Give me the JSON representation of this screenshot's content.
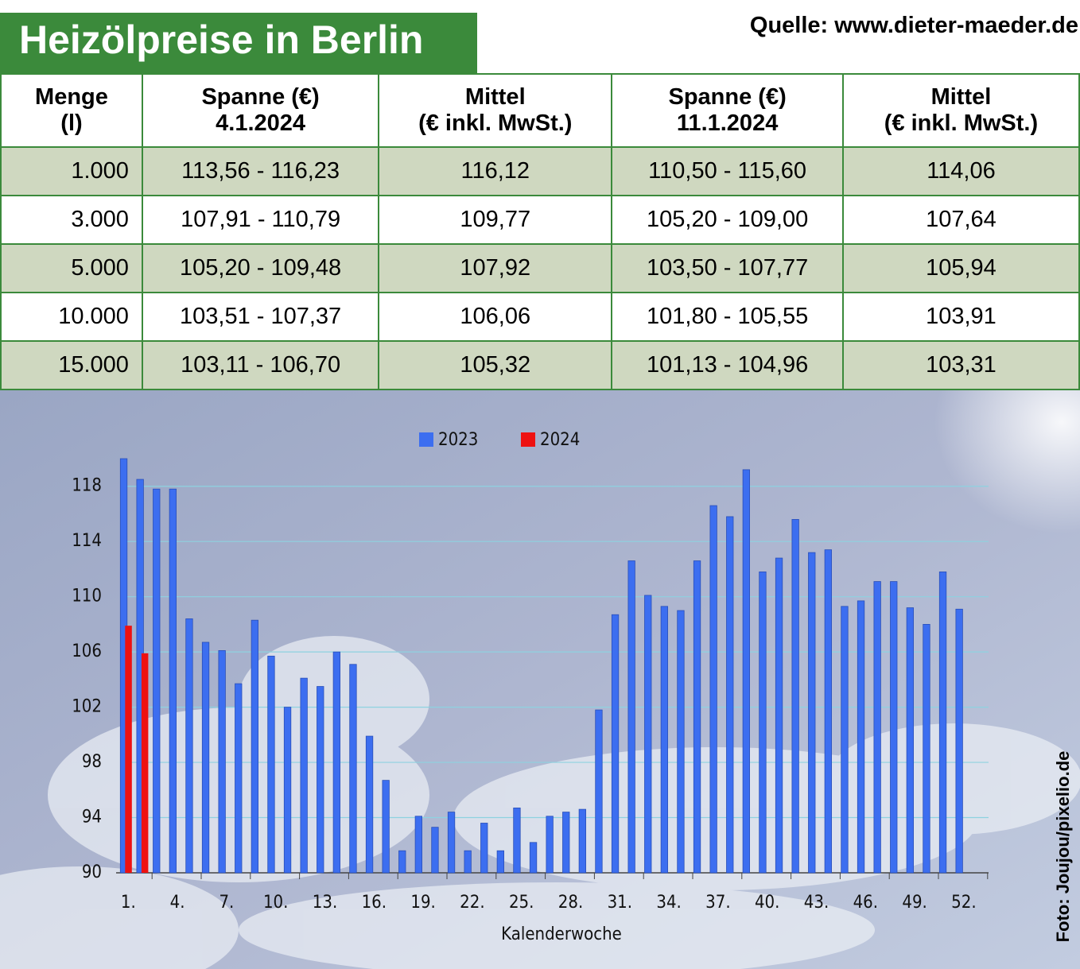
{
  "header": {
    "title": "Heizölpreise in Berlin",
    "source": "Quelle: www.dieter-maeder.de"
  },
  "table": {
    "headers": [
      [
        "Menge",
        "(l)"
      ],
      [
        "Spanne (€)",
        "4.1.2024"
      ],
      [
        "Mittel",
        "(€ inkl. MwSt.)"
      ],
      [
        "Spanne (€)",
        "11.1.2024"
      ],
      [
        "Mittel",
        "(€ inkl. MwSt.)"
      ]
    ],
    "rows": [
      [
        "1.000",
        "113,56 - 116,23",
        "116,12",
        "110,50 - 115,60",
        "114,06"
      ],
      [
        "3.000",
        "107,91 - 110,79",
        "109,77",
        "105,20 - 109,00",
        "107,64"
      ],
      [
        "5.000",
        "105,20 - 109,48",
        "107,92",
        "103,50 - 107,77",
        "105,94"
      ],
      [
        "10.000",
        "103,51 - 107,37",
        "106,06",
        "101,80 - 105,55",
        "103,91"
      ],
      [
        "15.000",
        "103,11 - 106,70",
        "105,32",
        "101,13 - 104,96",
        "103,31"
      ]
    ]
  },
  "chart_data": {
    "type": "bar",
    "x_label": "Kalenderwoche",
    "categories": [
      "1.",
      null,
      null,
      "4.",
      null,
      null,
      "7.",
      null,
      null,
      "10.",
      null,
      null,
      "13.",
      null,
      null,
      "16.",
      null,
      null,
      "19.",
      null,
      null,
      "22.",
      null,
      null,
      "25.",
      null,
      null,
      "28.",
      null,
      null,
      "31.",
      null,
      null,
      "34.",
      null,
      null,
      "37.",
      null,
      null,
      "40.",
      null,
      null,
      "43.",
      null,
      null,
      "46.",
      null,
      null,
      "49.",
      null,
      null,
      "52."
    ],
    "series": [
      {
        "name": "2023",
        "color": "#3c6ef0",
        "values": [
          120.0,
          118.5,
          117.8,
          117.8,
          108.4,
          106.7,
          106.1,
          103.7,
          108.3,
          105.7,
          102.0,
          104.1,
          103.5,
          106.0,
          105.1,
          99.9,
          96.7,
          91.6,
          94.1,
          93.3,
          94.4,
          91.6,
          93.6,
          91.6,
          94.7,
          92.2,
          94.1,
          94.4,
          94.6,
          101.8,
          108.7,
          112.6,
          110.1,
          109.3,
          109.0,
          112.6,
          116.6,
          115.8,
          119.2,
          111.8,
          112.8,
          115.6,
          113.2,
          113.4,
          109.3,
          109.7,
          111.1,
          111.1,
          109.2,
          108.0,
          111.8,
          109.1
        ]
      },
      {
        "name": "2024",
        "color": "#ee1111",
        "values": [
          107.9,
          105.9,
          null,
          null,
          null,
          null,
          null,
          null,
          null,
          null,
          null,
          null,
          null,
          null,
          null,
          null,
          null,
          null,
          null,
          null,
          null,
          null,
          null,
          null,
          null,
          null,
          null,
          null,
          null,
          null,
          null,
          null,
          null,
          null,
          null,
          null,
          null,
          null,
          null,
          null,
          null,
          null,
          null,
          null,
          null,
          null,
          null,
          null,
          null,
          null,
          null,
          null
        ]
      }
    ],
    "ylim": [
      90,
      120
    ],
    "yticks": [
      90,
      94,
      98,
      102,
      106,
      110,
      114,
      118
    ],
    "grid": true,
    "legend": "top"
  },
  "credit": "Foto: Joujou/pixelio.de"
}
